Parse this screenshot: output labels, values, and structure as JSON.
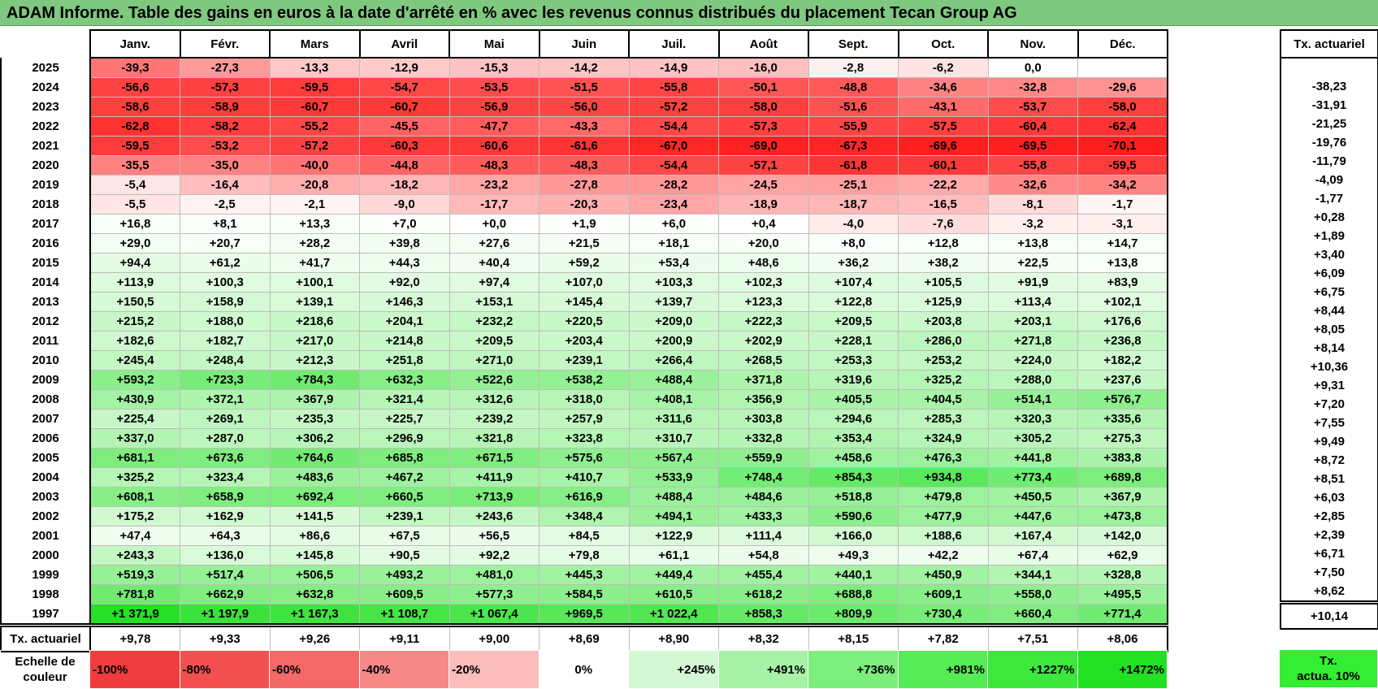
{
  "title": "ADAM Informe. Table des gains en euros à la date d'arrêté en % avec les revenus connus distribués du placement Tecan Group AG",
  "months": [
    "Janv.",
    "Févr.",
    "Mars",
    "Avril",
    "Mai",
    "Juin",
    "Juil.",
    "Août",
    "Sept.",
    "Oct.",
    "Nov.",
    "Déc."
  ],
  "side_header": "Tx. actuariel",
  "rows": [
    {
      "year": "2025",
      "values": [
        "-39,3",
        "-27,3",
        "-13,3",
        "-12,9",
        "-15,3",
        "-14,2",
        "-14,9",
        "-16,0",
        "-2,8",
        "-6,2",
        "0,0",
        ""
      ],
      "rate": ""
    },
    {
      "year": "2024",
      "values": [
        "-56,6",
        "-57,3",
        "-59,5",
        "-54,7",
        "-53,5",
        "-51,5",
        "-55,8",
        "-50,1",
        "-48,8",
        "-34,6",
        "-32,8",
        "-29,6"
      ],
      "rate": "-38,23"
    },
    {
      "year": "2023",
      "values": [
        "-58,6",
        "-58,9",
        "-60,7",
        "-60,7",
        "-56,9",
        "-56,0",
        "-57,2",
        "-58,0",
        "-51,6",
        "-43,1",
        "-53,7",
        "-58,0"
      ],
      "rate": "-31,91"
    },
    {
      "year": "2022",
      "values": [
        "-62,8",
        "-58,2",
        "-55,2",
        "-45,5",
        "-47,7",
        "-43,3",
        "-54,4",
        "-57,3",
        "-55,9",
        "-57,5",
        "-60,4",
        "-62,4"
      ],
      "rate": "-21,25"
    },
    {
      "year": "2021",
      "values": [
        "-59,5",
        "-53,2",
        "-57,2",
        "-60,3",
        "-60,6",
        "-61,6",
        "-67,0",
        "-69,0",
        "-67,3",
        "-69,6",
        "-69,5",
        "-70,1"
      ],
      "rate": "-19,76"
    },
    {
      "year": "2020",
      "values": [
        "-35,5",
        "-35,0",
        "-40,0",
        "-44,8",
        "-48,3",
        "-48,3",
        "-54,4",
        "-57,1",
        "-61,8",
        "-60,1",
        "-55,8",
        "-59,5"
      ],
      "rate": "-11,79"
    },
    {
      "year": "2019",
      "values": [
        "-5,4",
        "-16,4",
        "-20,8",
        "-18,2",
        "-23,2",
        "-27,8",
        "-28,2",
        "-24,5",
        "-25,1",
        "-22,2",
        "-32,6",
        "-34,2"
      ],
      "rate": "-4,09"
    },
    {
      "year": "2018",
      "values": [
        "-5,5",
        "-2,5",
        "-2,1",
        "-9,0",
        "-17,7",
        "-20,3",
        "-23,4",
        "-18,9",
        "-18,7",
        "-16,5",
        "-8,1",
        "-1,7"
      ],
      "rate": "-1,77"
    },
    {
      "year": "2017",
      "values": [
        "+16,8",
        "+8,1",
        "+13,3",
        "+7,0",
        "+0,0",
        "+1,9",
        "+6,0",
        "+0,4",
        "-4,0",
        "-7,6",
        "-3,2",
        "-3,1"
      ],
      "rate": "+0,28"
    },
    {
      "year": "2016",
      "values": [
        "+29,0",
        "+20,7",
        "+28,2",
        "+39,8",
        "+27,6",
        "+21,5",
        "+18,1",
        "+20,0",
        "+8,0",
        "+12,8",
        "+13,8",
        "+14,7"
      ],
      "rate": "+1,89"
    },
    {
      "year": "2015",
      "values": [
        "+94,4",
        "+61,2",
        "+41,7",
        "+44,3",
        "+40,4",
        "+59,2",
        "+53,4",
        "+48,6",
        "+36,2",
        "+38,2",
        "+22,5",
        "+13,8"
      ],
      "rate": "+3,40"
    },
    {
      "year": "2014",
      "values": [
        "+113,9",
        "+100,3",
        "+100,1",
        "+92,0",
        "+97,4",
        "+107,0",
        "+103,3",
        "+102,3",
        "+107,4",
        "+105,5",
        "+91,9",
        "+83,9"
      ],
      "rate": "+6,09"
    },
    {
      "year": "2013",
      "values": [
        "+150,5",
        "+158,9",
        "+139,1",
        "+146,3",
        "+153,1",
        "+145,4",
        "+139,7",
        "+123,3",
        "+122,8",
        "+125,9",
        "+113,4",
        "+102,1"
      ],
      "rate": "+6,75"
    },
    {
      "year": "2012",
      "values": [
        "+215,2",
        "+188,0",
        "+218,6",
        "+204,1",
        "+232,2",
        "+220,5",
        "+209,0",
        "+222,3",
        "+209,5",
        "+203,8",
        "+203,1",
        "+176,6"
      ],
      "rate": "+8,44"
    },
    {
      "year": "2011",
      "values": [
        "+182,6",
        "+182,7",
        "+217,0",
        "+214,8",
        "+209,5",
        "+203,4",
        "+200,9",
        "+202,9",
        "+228,1",
        "+286,0",
        "+271,8",
        "+236,8"
      ],
      "rate": "+8,05"
    },
    {
      "year": "2010",
      "values": [
        "+245,4",
        "+248,4",
        "+212,3",
        "+251,8",
        "+271,0",
        "+239,1",
        "+266,4",
        "+268,5",
        "+253,3",
        "+253,2",
        "+224,0",
        "+182,2"
      ],
      "rate": "+8,14"
    },
    {
      "year": "2009",
      "values": [
        "+593,2",
        "+723,3",
        "+784,3",
        "+632,3",
        "+522,6",
        "+538,2",
        "+488,4",
        "+371,8",
        "+319,6",
        "+325,2",
        "+288,0",
        "+237,6"
      ],
      "rate": "+10,36"
    },
    {
      "year": "2008",
      "values": [
        "+430,9",
        "+372,1",
        "+367,9",
        "+321,4",
        "+312,6",
        "+318,0",
        "+408,1",
        "+356,9",
        "+405,5",
        "+404,5",
        "+514,1",
        "+576,7"
      ],
      "rate": "+9,31"
    },
    {
      "year": "2007",
      "values": [
        "+225,4",
        "+269,1",
        "+235,3",
        "+225,7",
        "+239,2",
        "+257,9",
        "+311,6",
        "+303,8",
        "+294,6",
        "+285,3",
        "+320,3",
        "+335,6"
      ],
      "rate": "+7,20"
    },
    {
      "year": "2006",
      "values": [
        "+337,0",
        "+287,0",
        "+306,2",
        "+296,9",
        "+321,8",
        "+323,8",
        "+310,7",
        "+332,8",
        "+353,4",
        "+324,9",
        "+305,2",
        "+275,3"
      ],
      "rate": "+7,55"
    },
    {
      "year": "2005",
      "values": [
        "+681,1",
        "+673,6",
        "+764,6",
        "+685,8",
        "+671,5",
        "+575,6",
        "+567,4",
        "+559,9",
        "+458,6",
        "+476,3",
        "+441,8",
        "+383,8"
      ],
      "rate": "+9,49"
    },
    {
      "year": "2004",
      "values": [
        "+325,2",
        "+323,4",
        "+483,6",
        "+467,2",
        "+411,9",
        "+410,7",
        "+533,9",
        "+748,4",
        "+854,3",
        "+934,8",
        "+773,4",
        "+689,8"
      ],
      "rate": "+8,72"
    },
    {
      "year": "2003",
      "values": [
        "+608,1",
        "+658,9",
        "+692,4",
        "+660,5",
        "+713,9",
        "+616,9",
        "+488,4",
        "+484,6",
        "+518,8",
        "+479,8",
        "+450,5",
        "+367,9"
      ],
      "rate": "+8,51"
    },
    {
      "year": "2002",
      "values": [
        "+175,2",
        "+162,9",
        "+141,5",
        "+239,1",
        "+243,6",
        "+348,4",
        "+494,1",
        "+433,3",
        "+590,6",
        "+477,9",
        "+447,6",
        "+473,8"
      ],
      "rate": "+6,03"
    },
    {
      "year": "2001",
      "values": [
        "+47,4",
        "+64,3",
        "+86,6",
        "+67,5",
        "+56,5",
        "+84,5",
        "+122,9",
        "+111,4",
        "+166,0",
        "+188,6",
        "+167,4",
        "+142,0"
      ],
      "rate": "+2,85"
    },
    {
      "year": "2000",
      "values": [
        "+243,3",
        "+136,0",
        "+145,8",
        "+90,5",
        "+92,2",
        "+79,8",
        "+61,1",
        "+54,8",
        "+49,3",
        "+42,2",
        "+67,4",
        "+62,9"
      ],
      "rate": "+2,39"
    },
    {
      "year": "1999",
      "values": [
        "+519,3",
        "+517,4",
        "+506,5",
        "+493,2",
        "+481,0",
        "+445,3",
        "+449,4",
        "+455,4",
        "+440,1",
        "+450,9",
        "+344,1",
        "+328,8"
      ],
      "rate": "+6,71"
    },
    {
      "year": "1998",
      "values": [
        "+781,8",
        "+662,9",
        "+632,8",
        "+609,5",
        "+577,3",
        "+584,5",
        "+610,5",
        "+618,2",
        "+688,8",
        "+609,1",
        "+558,0",
        "+495,5"
      ],
      "rate": "+7,50"
    },
    {
      "year": "1997",
      "values": [
        "+1 371,9",
        "+1 197,9",
        "+1 167,3",
        "+1 108,7",
        "+1 067,4",
        "+969,5",
        "+1 022,4",
        "+858,3",
        "+809,9",
        "+730,4",
        "+660,4",
        "+771,4"
      ],
      "rate": "+8,62"
    }
  ],
  "actuarial_row": {
    "label": "Tx. actuariel",
    "values": [
      "+9,78",
      "+9,33",
      "+9,26",
      "+9,11",
      "+9,00",
      "+8,69",
      "+8,90",
      "+8,32",
      "+8,15",
      "+7,82",
      "+7,51",
      "+8,06"
    ],
    "total": "+10,14"
  },
  "legend": {
    "label_line1": "Echelle de",
    "label_line2": "couleur",
    "items": [
      {
        "text": "-100%",
        "color": "#f03c3c",
        "kind": "neg"
      },
      {
        "text": "-80%",
        "color": "#f25050",
        "kind": "neg"
      },
      {
        "text": "-60%",
        "color": "#f46868",
        "kind": "neg"
      },
      {
        "text": "-40%",
        "color": "#f78888",
        "kind": "neg"
      },
      {
        "text": "-20%",
        "color": "#fbbcbc",
        "kind": "neg"
      },
      {
        "text": "0%",
        "color": "#ffffff",
        "kind": "zero"
      },
      {
        "text": "+245%",
        "color": "#d4f7d4",
        "kind": "pos"
      },
      {
        "text": "+491%",
        "color": "#a6f2a6",
        "kind": "pos"
      },
      {
        "text": "+736%",
        "color": "#7cee7c",
        "kind": "pos"
      },
      {
        "text": "+981%",
        "color": "#55ec55",
        "kind": "pos"
      },
      {
        "text": "+1227%",
        "color": "#3de83d",
        "kind": "pos"
      },
      {
        "text": "+1472%",
        "color": "#22e022",
        "kind": "pos"
      }
    ],
    "side_line1": "Tx.",
    "side_line2": "actua. 10%",
    "side_color": "#33ee33"
  },
  "colors": {
    "title_bg": "#7fc87f",
    "neg_max": "#ff1e1e",
    "pos_max": "#22e022"
  }
}
